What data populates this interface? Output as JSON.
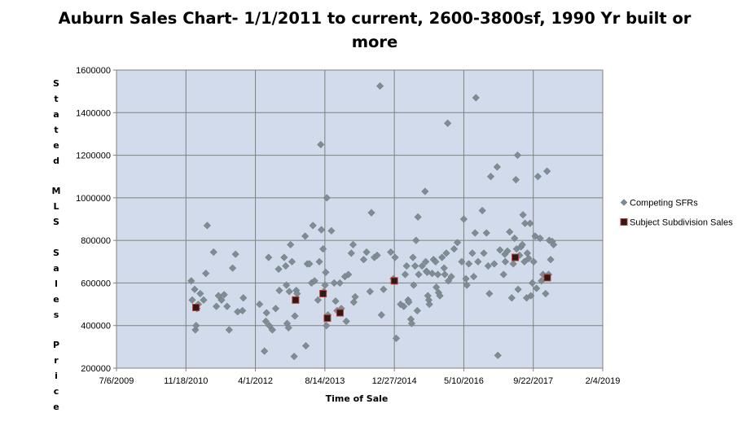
{
  "chart_data": {
    "type": "scatter",
    "title": "Auburn Sales Chart- 1/1/2011 to current, 2600-3800sf, 1990 Yr built or more",
    "xlabel": "Time of Sale",
    "ylabel": "Stated MLS Sales Price",
    "xlim": [
      "2009-07-06",
      "2019-02-04"
    ],
    "ylim": [
      200000,
      1600000
    ],
    "x_ticks": [
      "7/6/2009",
      "11/18/2010",
      "4/1/2012",
      "8/14/2013",
      "12/27/2014",
      "5/10/2016",
      "9/22/2017",
      "2/4/2019"
    ],
    "y_ticks": [
      200000,
      400000,
      600000,
      800000,
      1000000,
      1200000,
      1400000,
      1600000
    ],
    "grid": true,
    "legend": "right",
    "series": [
      {
        "name": "Competing SFRs",
        "marker": "diamond",
        "color": "#7f8c93",
        "points": [
          [
            "2010-12-26",
            610000
          ],
          [
            "2011-01-02",
            520000
          ],
          [
            "2011-01-20",
            570000
          ],
          [
            "2011-01-25",
            380000
          ],
          [
            "2011-01-30",
            400000
          ],
          [
            "2011-02-05",
            480000
          ],
          [
            "2011-02-15",
            500000
          ],
          [
            "2011-03-01",
            550000
          ],
          [
            "2011-03-25",
            520000
          ],
          [
            "2011-04-10",
            645000
          ],
          [
            "2011-04-20",
            870000
          ],
          [
            "2011-06-05",
            745000
          ],
          [
            "2011-06-25",
            490000
          ],
          [
            "2011-07-10",
            540000
          ],
          [
            "2011-08-01",
            520000
          ],
          [
            "2011-08-20",
            545000
          ],
          [
            "2011-09-10",
            490000
          ],
          [
            "2011-09-25",
            380000
          ],
          [
            "2011-10-20",
            670000
          ],
          [
            "2011-11-10",
            735000
          ],
          [
            "2011-11-25",
            465000
          ],
          [
            "2011-12-30",
            470000
          ],
          [
            "2012-01-05",
            530000
          ],
          [
            "2012-05-01",
            500000
          ],
          [
            "2012-06-05",
            280000
          ],
          [
            "2012-06-15",
            420000
          ],
          [
            "2012-06-20",
            460000
          ],
          [
            "2012-07-05",
            720000
          ],
          [
            "2012-07-10",
            400000
          ],
          [
            "2012-08-01",
            380000
          ],
          [
            "2012-08-25",
            480000
          ],
          [
            "2012-09-15",
            665000
          ],
          [
            "2012-09-20",
            565000
          ],
          [
            "2012-10-25",
            720000
          ],
          [
            "2012-11-05",
            680000
          ],
          [
            "2012-11-10",
            590000
          ],
          [
            "2012-11-15",
            410000
          ],
          [
            "2012-11-25",
            390000
          ],
          [
            "2012-12-01",
            560000
          ],
          [
            "2012-12-10",
            780000
          ],
          [
            "2012-12-20",
            700000
          ],
          [
            "2013-01-05",
            255000
          ],
          [
            "2013-01-10",
            445000
          ],
          [
            "2013-01-20",
            565000
          ],
          [
            "2013-01-26",
            550000
          ],
          [
            "2013-03-25",
            820000
          ],
          [
            "2013-03-30",
            305000
          ],
          [
            "2013-04-10",
            690000
          ],
          [
            "2013-04-25",
            690000
          ],
          [
            "2013-05-10",
            600000
          ],
          [
            "2013-05-20",
            870000
          ],
          [
            "2013-06-01",
            610000
          ],
          [
            "2013-06-25",
            520000
          ],
          [
            "2013-07-05",
            700000
          ],
          [
            "2013-07-15",
            1250000
          ],
          [
            "2013-07-20",
            850000
          ],
          [
            "2013-08-01",
            760000
          ],
          [
            "2013-08-05",
            560000
          ],
          [
            "2013-08-15",
            590000
          ],
          [
            "2013-08-20",
            650000
          ],
          [
            "2013-08-25",
            400000
          ],
          [
            "2013-08-28",
            1000000
          ],
          [
            "2013-09-05",
            450000
          ],
          [
            "2013-09-30",
            845000
          ],
          [
            "2013-10-20",
            600000
          ],
          [
            "2013-10-30",
            515000
          ],
          [
            "2013-11-10",
            470000
          ],
          [
            "2013-11-30",
            600000
          ],
          [
            "2013-12-10",
            480000
          ],
          [
            "2014-01-05",
            630000
          ],
          [
            "2014-01-15",
            420000
          ],
          [
            "2014-01-30",
            640000
          ],
          [
            "2014-02-20",
            740000
          ],
          [
            "2014-03-05",
            780000
          ],
          [
            "2014-03-10",
            510000
          ],
          [
            "2014-03-20",
            535000
          ],
          [
            "2014-05-20",
            710000
          ],
          [
            "2014-06-10",
            745000
          ],
          [
            "2014-07-05",
            560000
          ],
          [
            "2014-07-15",
            930000
          ],
          [
            "2014-08-05",
            720000
          ],
          [
            "2014-08-25",
            730000
          ],
          [
            "2014-09-15",
            1525000
          ],
          [
            "2014-09-25",
            450000
          ],
          [
            "2014-10-10",
            570000
          ],
          [
            "2014-12-01",
            745000
          ],
          [
            "2014-12-20",
            620000
          ],
          [
            "2015-01-01",
            720000
          ],
          [
            "2015-01-10",
            340000
          ],
          [
            "2015-02-10",
            500000
          ],
          [
            "2015-03-05",
            490000
          ],
          [
            "2015-03-15",
            640000
          ],
          [
            "2015-03-25",
            680000
          ],
          [
            "2015-04-05",
            520000
          ],
          [
            "2015-04-10",
            510000
          ],
          [
            "2015-04-25",
            430000
          ],
          [
            "2015-05-01",
            410000
          ],
          [
            "2015-05-10",
            720000
          ],
          [
            "2015-05-15",
            590000
          ],
          [
            "2015-05-25",
            680000
          ],
          [
            "2015-06-01",
            800000
          ],
          [
            "2015-06-10",
            470000
          ],
          [
            "2015-06-15",
            910000
          ],
          [
            "2015-06-20",
            640000
          ],
          [
            "2015-07-15",
            680000
          ],
          [
            "2015-08-05",
            1030000
          ],
          [
            "2015-08-10",
            700000
          ],
          [
            "2015-08-15",
            655000
          ],
          [
            "2015-08-20",
            650000
          ],
          [
            "2015-08-25",
            540000
          ],
          [
            "2015-09-01",
            520000
          ],
          [
            "2015-09-05",
            500000
          ],
          [
            "2015-09-25",
            645000
          ],
          [
            "2015-10-05",
            710000
          ],
          [
            "2015-10-20",
            700000
          ],
          [
            "2015-10-25",
            580000
          ],
          [
            "2015-11-05",
            640000
          ],
          [
            "2015-11-10",
            555000
          ],
          [
            "2015-11-20",
            540000
          ],
          [
            "2015-12-05",
            720000
          ],
          [
            "2015-12-20",
            670000
          ],
          [
            "2015-12-25",
            640000
          ],
          [
            "2016-01-05",
            740000
          ],
          [
            "2016-01-15",
            1350000
          ],
          [
            "2016-01-20",
            610000
          ],
          [
            "2016-02-10",
            630000
          ],
          [
            "2016-03-01",
            760000
          ],
          [
            "2016-03-25",
            790000
          ],
          [
            "2016-04-25",
            700000
          ],
          [
            "2016-05-10",
            900000
          ],
          [
            "2016-05-25",
            620000
          ],
          [
            "2016-06-01",
            590000
          ],
          [
            "2016-06-15",
            690000
          ],
          [
            "2016-07-10",
            740000
          ],
          [
            "2016-07-20",
            630000
          ],
          [
            "2016-07-30",
            835000
          ],
          [
            "2016-08-05",
            1470000
          ],
          [
            "2016-08-20",
            700000
          ],
          [
            "2016-09-20",
            940000
          ],
          [
            "2016-10-01",
            740000
          ],
          [
            "2016-10-20",
            835000
          ],
          [
            "2016-11-01",
            680000
          ],
          [
            "2016-11-10",
            550000
          ],
          [
            "2016-11-20",
            1100000
          ],
          [
            "2016-12-15",
            690000
          ],
          [
            "2017-01-05",
            1145000
          ],
          [
            "2017-01-10",
            260000
          ],
          [
            "2017-01-25",
            755000
          ],
          [
            "2017-02-20",
            640000
          ],
          [
            "2017-03-01",
            735000
          ],
          [
            "2017-03-05",
            700000
          ],
          [
            "2017-03-20",
            750000
          ],
          [
            "2017-04-05",
            840000
          ],
          [
            "2017-04-20",
            530000
          ],
          [
            "2017-05-01",
            690000
          ],
          [
            "2017-05-10",
            810000
          ],
          [
            "2017-05-20",
            1085000
          ],
          [
            "2017-05-25",
            760000
          ],
          [
            "2017-06-01",
            1200000
          ],
          [
            "2017-06-05",
            570000
          ],
          [
            "2017-06-15",
            730000
          ],
          [
            "2017-06-25",
            770000
          ],
          [
            "2017-07-05",
            780000
          ],
          [
            "2017-07-10",
            920000
          ],
          [
            "2017-07-20",
            700000
          ],
          [
            "2017-07-25",
            880000
          ],
          [
            "2017-08-05",
            530000
          ],
          [
            "2017-08-10",
            740000
          ],
          [
            "2017-08-20",
            715000
          ],
          [
            "2017-08-30",
            880000
          ],
          [
            "2017-09-05",
            540000
          ],
          [
            "2017-09-15",
            600000
          ],
          [
            "2017-09-25",
            700000
          ],
          [
            "2017-10-05",
            820000
          ],
          [
            "2017-10-15",
            575000
          ],
          [
            "2017-10-25",
            1100000
          ],
          [
            "2017-11-10",
            810000
          ],
          [
            "2017-11-20",
            610000
          ],
          [
            "2017-12-01",
            640000
          ],
          [
            "2017-12-20",
            550000
          ],
          [
            "2017-12-30",
            1125000
          ],
          [
            "2018-01-10",
            640000
          ],
          [
            "2018-01-15",
            800000
          ],
          [
            "2018-01-25",
            710000
          ],
          [
            "2018-02-05",
            795000
          ],
          [
            "2018-02-15",
            780000
          ]
        ]
      },
      {
        "name": "Subject Subdivision Sales",
        "marker": "square",
        "color": "#2e1a1a",
        "edge_color": "#c0392b",
        "points": [
          [
            "2011-01-29",
            485000
          ],
          [
            "2013-01-15",
            520000
          ],
          [
            "2013-08-01",
            550000
          ],
          [
            "2013-09-01",
            435000
          ],
          [
            "2013-12-01",
            460000
          ],
          [
            "2014-12-27",
            610000
          ],
          [
            "2017-05-15",
            720000
          ],
          [
            "2018-01-01",
            625000
          ]
        ]
      }
    ]
  },
  "colors": {
    "plot_background": "#d1dbeb",
    "grid": "#808080",
    "axis": "#808080"
  }
}
